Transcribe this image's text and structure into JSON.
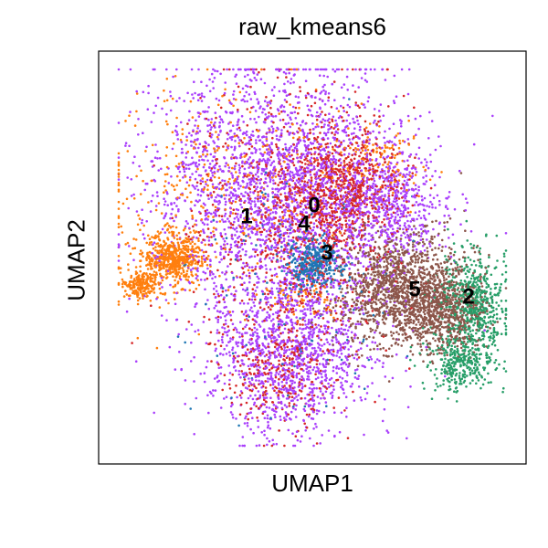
{
  "chart_data": {
    "type": "scatter",
    "title": "raw_kmeans6",
    "xlabel": "UMAP1",
    "ylabel": "UMAP2",
    "grid": false,
    "legend": "on data",
    "show_ticks": false,
    "xlim": [
      0,
      468
    ],
    "ylim": [
      0,
      452
    ],
    "series": [
      {
        "name": "0",
        "color": "#1f77b4",
        "point_count": 500,
        "regions": [
          {
            "cx": 236,
            "cy": 220,
            "rx": 28,
            "ry": 28,
            "weight": 4
          },
          {
            "cx": 210,
            "cy": 190,
            "rx": 110,
            "ry": 140,
            "weight": 1
          }
        ]
      },
      {
        "name": "1",
        "color": "#ff7f0e",
        "point_count": 1300,
        "regions": [
          {
            "cx": 80,
            "cy": 224,
            "rx": 32,
            "ry": 28,
            "weight": 4
          },
          {
            "cx": 45,
            "cy": 195,
            "rx": 20,
            "ry": 14,
            "weight": 1.4
          },
          {
            "cx": 135,
            "cy": 300,
            "rx": 135,
            "ry": 115,
            "weight": 3
          },
          {
            "cx": 300,
            "cy": 335,
            "rx": 60,
            "ry": 40,
            "weight": 0.8
          },
          {
            "cx": 220,
            "cy": 180,
            "rx": 40,
            "ry": 20,
            "weight": 0.4
          }
        ]
      },
      {
        "name": "2",
        "color": "#279e68",
        "point_count": 900,
        "regions": [
          {
            "cx": 410,
            "cy": 175,
            "rx": 35,
            "ry": 55,
            "weight": 3
          },
          {
            "cx": 395,
            "cy": 110,
            "rx": 35,
            "ry": 30,
            "weight": 1.5
          }
        ]
      },
      {
        "name": "3",
        "color": "#d62728",
        "point_count": 1800,
        "regions": [
          {
            "cx": 215,
            "cy": 260,
            "rx": 105,
            "ry": 150,
            "weight": 3
          },
          {
            "cx": 270,
            "cy": 300,
            "rx": 60,
            "ry": 60,
            "weight": 2
          },
          {
            "cx": 200,
            "cy": 100,
            "rx": 60,
            "ry": 60,
            "weight": 1
          }
        ]
      },
      {
        "name": "4",
        "color": "#aa40fc",
        "point_count": 4200,
        "regions": [
          {
            "cx": 200,
            "cy": 300,
            "rx": 140,
            "ry": 135,
            "weight": 5
          },
          {
            "cx": 210,
            "cy": 120,
            "rx": 90,
            "ry": 85,
            "weight": 2.5
          },
          {
            "cx": 320,
            "cy": 280,
            "rx": 60,
            "ry": 60,
            "weight": 1
          }
        ]
      },
      {
        "name": "5",
        "color": "#8c564b",
        "point_count": 1900,
        "regions": [
          {
            "cx": 330,
            "cy": 190,
            "rx": 70,
            "ry": 60,
            "weight": 3
          },
          {
            "cx": 380,
            "cy": 165,
            "rx": 40,
            "ry": 45,
            "weight": 1.2
          }
        ]
      }
    ],
    "labels": [
      {
        "text": "0",
        "x": 236,
        "y": 282
      },
      {
        "text": "1",
        "x": 162,
        "y": 270
      },
      {
        "text": "2",
        "x": 405,
        "y": 182
      },
      {
        "text": "3",
        "x": 250,
        "y": 230
      },
      {
        "text": "4",
        "x": 225,
        "y": 262
      },
      {
        "text": "5",
        "x": 346,
        "y": 190
      }
    ]
  }
}
